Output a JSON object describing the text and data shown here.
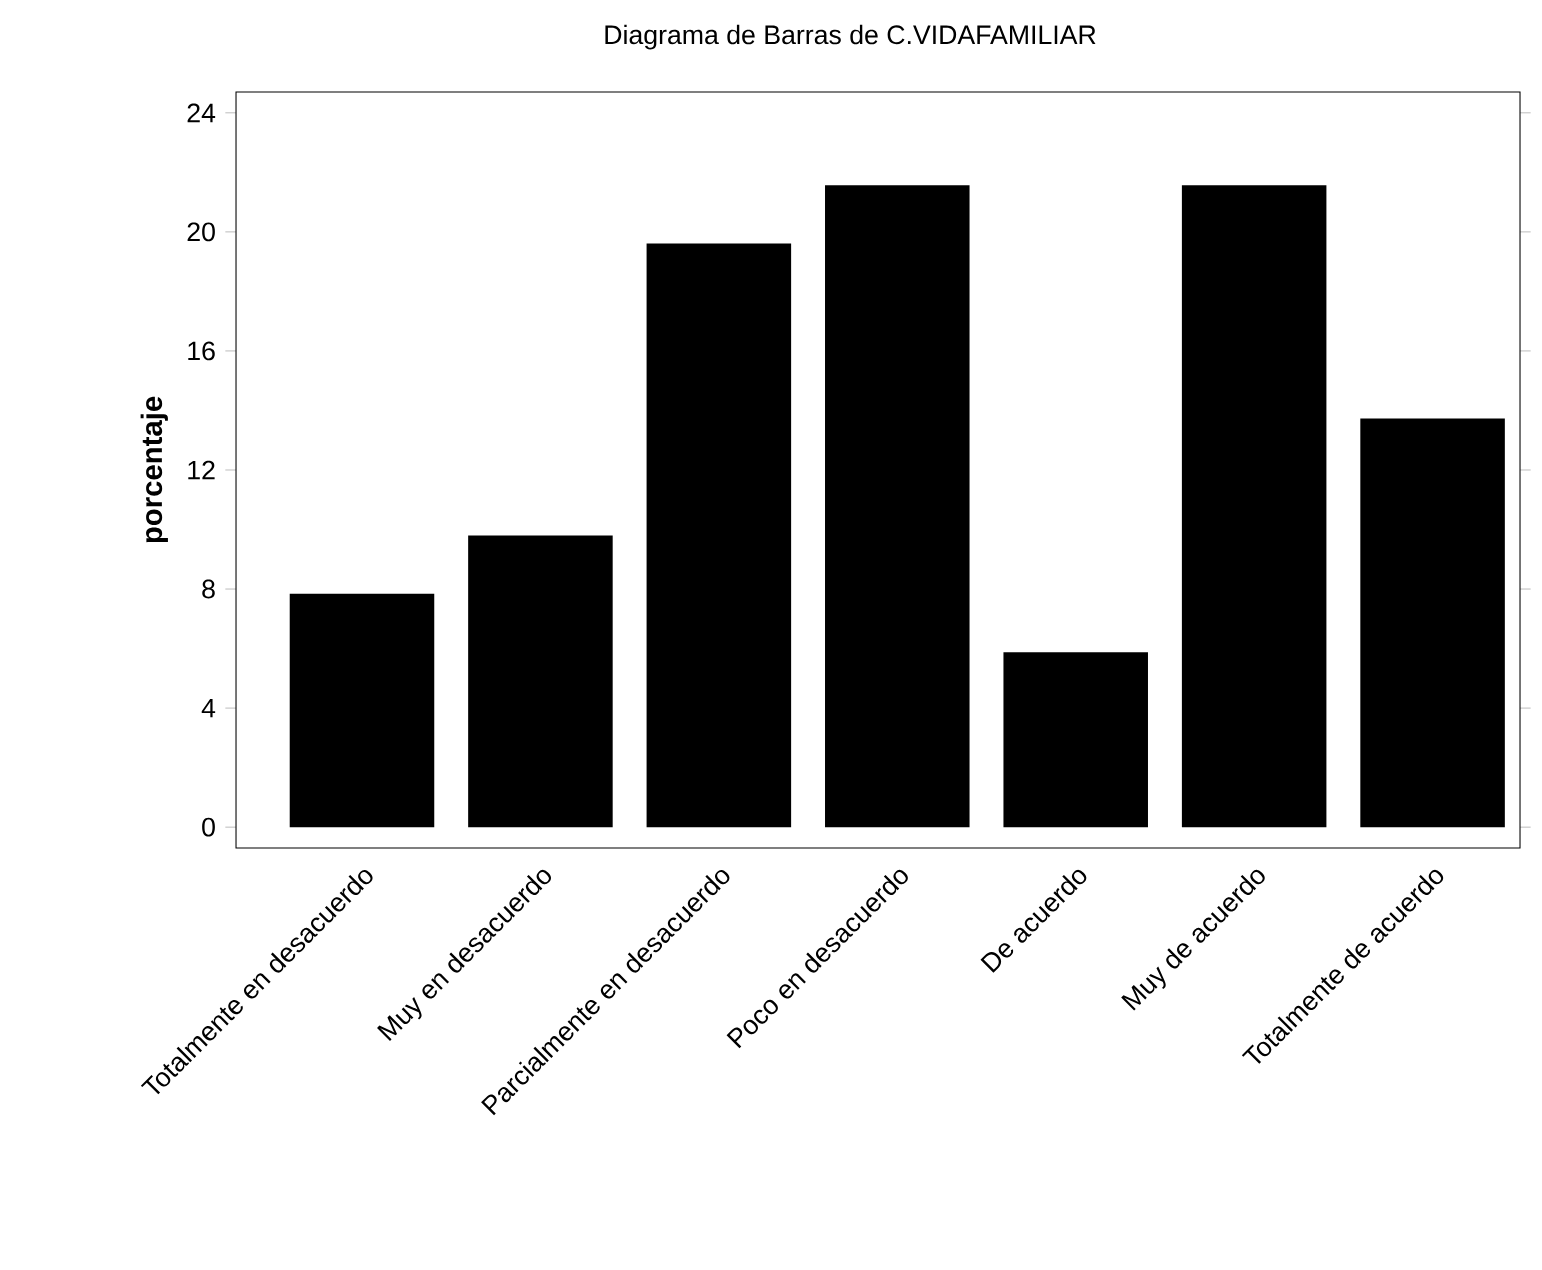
{
  "chart_data": {
    "type": "bar",
    "title": "Diagrama de Barras de C.VIDAFAMILIAR",
    "ylabel": "porcentaje",
    "categories": [
      "Totalmente en desacuerdo",
      "Muy en desacuerdo",
      "Parcialmente en desacuerdo",
      "Poco en desacuerdo",
      "De acuerdo",
      "Muy de acuerdo",
      "Totalmente de acuerdo"
    ],
    "values": [
      7.84,
      9.8,
      19.61,
      21.57,
      5.88,
      21.57,
      13.73
    ],
    "color": "#000000",
    "ylim": [
      -0.7,
      24.7
    ],
    "yticks": [
      0,
      4,
      8,
      12,
      16,
      20,
      24
    ],
    "grid": false,
    "legend": false
  }
}
